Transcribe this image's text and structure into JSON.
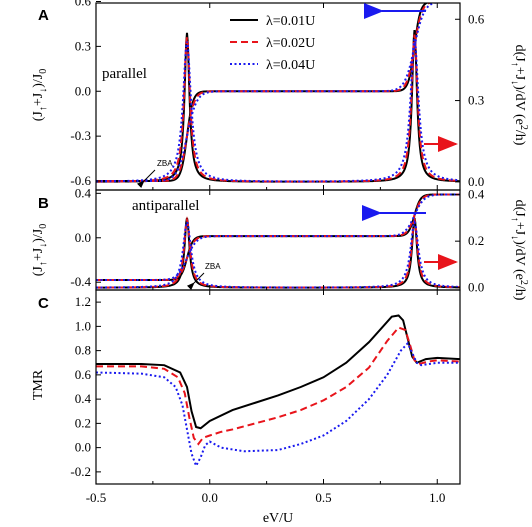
{
  "colors": {
    "black": "#000000",
    "red": "#e8141b",
    "blue": "#1a1aef"
  },
  "series_styles": [
    {
      "name": "λ=0.01U",
      "color": "#000000",
      "dash": ""
    },
    {
      "name": "λ=0.02U",
      "color": "#e8141b",
      "dash": "7,4"
    },
    {
      "name": "λ=0.04U",
      "color": "#1a1aef",
      "dash": "2,2.5"
    }
  ],
  "labels": {
    "panel_a": "A",
    "panel_b": "B",
    "panel_c": "C",
    "parallel": "parallel",
    "antiparallel": "antiparallel",
    "zba": "ZBA",
    "xlabel": "eV/U",
    "ylabel_c": "TMR"
  },
  "chart_data": [
    {
      "type": "line",
      "panel": "A",
      "annotation": "parallel",
      "x": [
        -0.5,
        1.1
      ],
      "xlim": [
        -0.5,
        1.1
      ],
      "xticks": [
        -0.5,
        0.0,
        0.5,
        1.0
      ],
      "ylim_left": [
        -0.66,
        0.59
      ],
      "yticks_left": [
        -0.6,
        -0.3,
        0.0,
        0.3,
        0.6
      ],
      "ytick_labels_left": [
        "-0.6",
        "-0.3",
        "0.0",
        "0.3",
        "0.6"
      ],
      "ylim_right": [
        -0.03,
        0.66
      ],
      "yticks_right": [
        0.0,
        0.3,
        0.6
      ],
      "ytick_labels_right": [
        "0.0",
        "0.3",
        "0.6"
      ],
      "legend": [
        "λ=0.01U",
        "λ=0.02U",
        "λ=0.04U"
      ],
      "legend_position": "top-center",
      "current_curve": {
        "low": -0.6,
        "high": 0.6,
        "steps": [
          -0.1,
          0.9
        ],
        "middle": 0.0
      },
      "conductance_peaks": [
        {
          "x": -0.1,
          "height": 0.55,
          "axis": "right"
        },
        {
          "x": 0.9,
          "height": 0.56,
          "axis": "right"
        }
      ],
      "arrows": [
        {
          "color": "blue",
          "points_to": "left axis",
          "x": 0.88,
          "y": 0.58
        },
        {
          "color": "red",
          "points_to": "right axis",
          "x": 1.0,
          "y": 0.1
        }
      ],
      "zba_arrow": {
        "x": -0.04,
        "y": -0.57
      }
    },
    {
      "type": "line",
      "panel": "B",
      "annotation": "antiparallel",
      "xlim": [
        -0.5,
        1.1
      ],
      "xticks": [
        -0.5,
        0.0,
        0.5,
        1.0
      ],
      "ylim_left": [
        -0.47,
        0.43
      ],
      "yticks_left": [
        -0.4,
        0.0,
        0.4
      ],
      "ytick_labels_left": [
        "-0.4",
        "0.0",
        "0.4"
      ],
      "ylim_right": [
        -0.01,
        0.42
      ],
      "yticks_right": [
        0.0,
        0.2,
        0.4
      ],
      "ytick_labels_right": [
        "0.0",
        "0.2",
        "0.4"
      ],
      "current_curve": {
        "low": -0.38,
        "high": 0.39,
        "steps": [
          -0.1,
          0.9
        ],
        "middle": 0.015
      },
      "conductance_peaks": [
        {
          "x": -0.1,
          "height": 0.3,
          "axis": "right"
        },
        {
          "x": 0.9,
          "height": 0.3,
          "axis": "right"
        }
      ],
      "arrows": [
        {
          "color": "blue",
          "points_to": "left axis",
          "x": 0.88,
          "y": 0.36
        },
        {
          "color": "red",
          "points_to": "right axis",
          "x": 1.0,
          "y": 0.14
        }
      ],
      "zba_arrow": {
        "x": 0.12,
        "y": -0.45
      }
    },
    {
      "type": "line",
      "panel": "C",
      "xlabel": "eV/U",
      "ylabel": "TMR",
      "xlim": [
        -0.5,
        1.1
      ],
      "xticks": [
        -0.5,
        0.0,
        0.5,
        1.0
      ],
      "xtick_labels": [
        "-0.5",
        "0.0",
        "0.5",
        "1.0"
      ],
      "ylim": [
        -0.3,
        1.3
      ],
      "yticks": [
        -0.2,
        0.0,
        0.2,
        0.4,
        0.6,
        0.8,
        1.0,
        1.2
      ],
      "ytick_labels": [
        "-0.2",
        "0.0",
        "0.2",
        "0.4",
        "0.6",
        "0.8",
        "1.0",
        "1.2"
      ],
      "series": [
        {
          "name": "λ=0.01U",
          "points": [
            [
              -0.5,
              0.69
            ],
            [
              -0.3,
              0.69
            ],
            [
              -0.2,
              0.68
            ],
            [
              -0.13,
              0.62
            ],
            [
              -0.1,
              0.5
            ],
            [
              -0.08,
              0.3
            ],
            [
              -0.06,
              0.17
            ],
            [
              -0.04,
              0.16
            ],
            [
              0.0,
              0.22
            ],
            [
              0.1,
              0.31
            ],
            [
              0.2,
              0.37
            ],
            [
              0.3,
              0.43
            ],
            [
              0.4,
              0.5
            ],
            [
              0.5,
              0.58
            ],
            [
              0.6,
              0.7
            ],
            [
              0.7,
              0.87
            ],
            [
              0.8,
              1.08
            ],
            [
              0.83,
              1.09
            ],
            [
              0.85,
              1.05
            ],
            [
              0.87,
              0.9
            ],
            [
              0.89,
              0.75
            ],
            [
              0.91,
              0.7
            ],
            [
              0.95,
              0.73
            ],
            [
              1.0,
              0.74
            ],
            [
              1.1,
              0.73
            ]
          ]
        },
        {
          "name": "λ=0.02U",
          "points": [
            [
              -0.5,
              0.67
            ],
            [
              -0.3,
              0.67
            ],
            [
              -0.2,
              0.65
            ],
            [
              -0.14,
              0.58
            ],
            [
              -0.11,
              0.45
            ],
            [
              -0.09,
              0.25
            ],
            [
              -0.07,
              0.08
            ],
            [
              -0.05,
              0.03
            ],
            [
              -0.03,
              0.08
            ],
            [
              0.0,
              0.1
            ],
            [
              0.05,
              0.13
            ],
            [
              0.1,
              0.15
            ],
            [
              0.2,
              0.2
            ],
            [
              0.3,
              0.25
            ],
            [
              0.4,
              0.31
            ],
            [
              0.5,
              0.39
            ],
            [
              0.6,
              0.5
            ],
            [
              0.7,
              0.66
            ],
            [
              0.78,
              0.88
            ],
            [
              0.83,
              0.99
            ],
            [
              0.86,
              0.97
            ],
            [
              0.88,
              0.85
            ],
            [
              0.9,
              0.72
            ],
            [
              0.92,
              0.69
            ],
            [
              0.96,
              0.71
            ],
            [
              1.0,
              0.72
            ],
            [
              1.1,
              0.71
            ]
          ]
        },
        {
          "name": "λ=0.04U",
          "points": [
            [
              -0.5,
              0.62
            ],
            [
              -0.3,
              0.61
            ],
            [
              -0.2,
              0.58
            ],
            [
              -0.15,
              0.5
            ],
            [
              -0.12,
              0.35
            ],
            [
              -0.1,
              0.15
            ],
            [
              -0.08,
              -0.05
            ],
            [
              -0.06,
              -0.15
            ],
            [
              -0.04,
              -0.08
            ],
            [
              -0.02,
              0.02
            ],
            [
              0.0,
              0.05
            ],
            [
              0.05,
              0.0
            ],
            [
              0.15,
              -0.03
            ],
            [
              0.3,
              -0.02
            ],
            [
              0.4,
              0.03
            ],
            [
              0.5,
              0.1
            ],
            [
              0.6,
              0.22
            ],
            [
              0.7,
              0.4
            ],
            [
              0.78,
              0.6
            ],
            [
              0.84,
              0.8
            ],
            [
              0.87,
              0.86
            ],
            [
              0.89,
              0.78
            ],
            [
              0.91,
              0.7
            ],
            [
              0.93,
              0.68
            ],
            [
              1.0,
              0.7
            ],
            [
              1.1,
              0.7
            ]
          ]
        }
      ]
    }
  ]
}
